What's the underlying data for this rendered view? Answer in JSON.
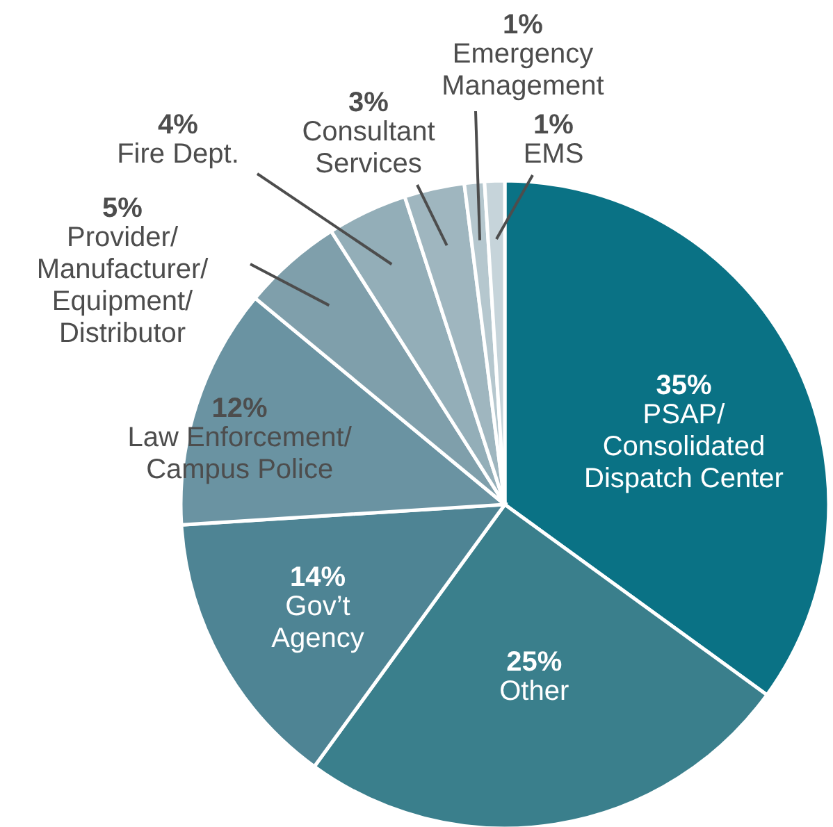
{
  "chart_data": {
    "type": "pie",
    "categories": [
      "PSAP/\nConsolidated\nDispatch Center",
      "Other",
      "Gov’t\nAgency",
      "Law Enforcement/\nCampus Police",
      "Provider/\nManufacturer/\nEquipment/\nDistributor",
      "Fire Dept.",
      "Consultant\nServices",
      "Emergency\nManagement",
      "EMS"
    ],
    "values": [
      35,
      25,
      14,
      12,
      5,
      4,
      3,
      1,
      1
    ],
    "value_labels": [
      "35%",
      "25%",
      "14%",
      "12%",
      "5%",
      "4%",
      "3%",
      "1%",
      "1%"
    ],
    "colors": [
      "#0a7285",
      "#3a7f8c",
      "#4e8494",
      "#6a93a2",
      "#7f9fab",
      "#93aeb8",
      "#9fb6bf",
      "#b5c7ce",
      "#c6d4da"
    ]
  }
}
